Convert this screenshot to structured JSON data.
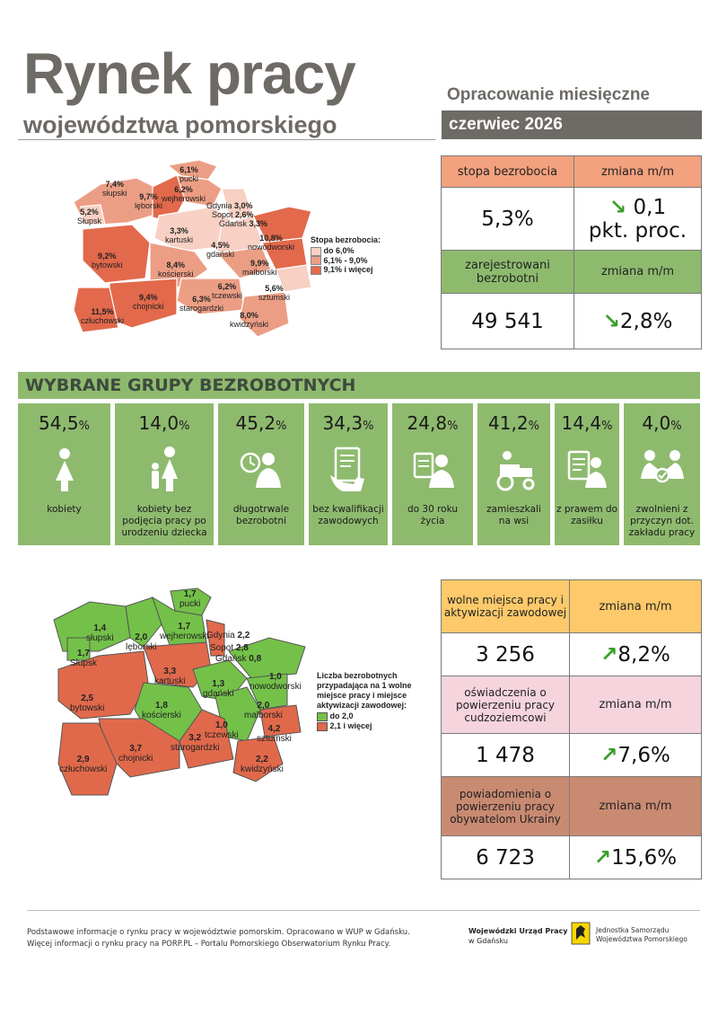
{
  "header": {
    "title": "Rynek pracy",
    "subtitle": "województwa pomorskiego",
    "report_type": "Opracowanie miesięczne",
    "period": "czerwiec 2026"
  },
  "colors": {
    "gray": "#6e6a66",
    "salmon_header": "#f3a17e",
    "green": "#8eba6e",
    "yellow": "#fdc96a",
    "pink": "#f5d4dd",
    "brown": "#c98a72",
    "map_low": "#f8d0c4",
    "map_mid": "#ec9e85",
    "map_high": "#e2694b",
    "map2_green": "#74c149",
    "map2_red": "#e1694b"
  },
  "kpi_top": {
    "unemployment_rate_label": "stopa bezrobocia",
    "change_label": "zmiana m/m",
    "unemployment_rate": "5,3%",
    "unemployment_rate_change": "0,1",
    "unemployment_rate_change_unit": "pkt. proc.",
    "registered_label": "zarejestrowani bezrobotni",
    "registered": "49 541",
    "registered_change": "2,8%"
  },
  "map1": {
    "legend_title": "Stopa bezrobocia:",
    "legend": [
      "do 6,0%",
      "6,1% - 9,0%",
      "9,1% i więcej"
    ],
    "counties": [
      {
        "name": "pucki",
        "value": "6,1%"
      },
      {
        "name": "wejherowski",
        "value": "6,2%"
      },
      {
        "name": "słupski",
        "value": "7,4%"
      },
      {
        "name": "lęborski",
        "value": "9,7%"
      },
      {
        "name": "Słupsk",
        "value": "5,2%"
      },
      {
        "name": "Gdynia",
        "value": "3,0%"
      },
      {
        "name": "Sopot",
        "value": "2,6%"
      },
      {
        "name": "Gdańsk",
        "value": "3,3%"
      },
      {
        "name": "kartuski",
        "value": "3,3%"
      },
      {
        "name": "gdański",
        "value": "4,5%"
      },
      {
        "name": "nowodworski",
        "value": "10,8%"
      },
      {
        "name": "bytowski",
        "value": "9,2%"
      },
      {
        "name": "kościerski",
        "value": "8,4%"
      },
      {
        "name": "malborski",
        "value": "9,9%"
      },
      {
        "name": "tczewski",
        "value": "6,2%"
      },
      {
        "name": "sztumski",
        "value": "5,6%"
      },
      {
        "name": "chojnicki",
        "value": "9,4%"
      },
      {
        "name": "starogardzki",
        "value": "6,3%"
      },
      {
        "name": "człuchowski",
        "value": "11,5%"
      },
      {
        "name": "kwidzyński",
        "value": "8,0%"
      }
    ]
  },
  "groups": {
    "title": "WYBRANE GRUPY BEZROBOTNYCH",
    "items": [
      {
        "value": "54,5",
        "unit": "%",
        "label": "kobiety",
        "icon": "woman-icon"
      },
      {
        "value": "14,0",
        "unit": "%",
        "label": "kobiety bez podjęcia pracy po urodzeniu dziecka",
        "icon": "mother-child-icon"
      },
      {
        "value": "45,2",
        "unit": "%",
        "label": "długotrwale bezrobotni",
        "icon": "clock-person-icon"
      },
      {
        "value": "34,3",
        "unit": "%",
        "label": "bez kwalifikacji zawodowych",
        "icon": "document-hand-icon"
      },
      {
        "value": "24,8",
        "unit": "%",
        "label": "do 30 roku życia",
        "icon": "young-person-icon"
      },
      {
        "value": "41,2",
        "unit": "%",
        "label": "zamieszkali na wsi",
        "icon": "tractor-icon"
      },
      {
        "value": "14,4",
        "unit": "%",
        "label": "z prawem do zasiłku",
        "icon": "benefit-document-icon"
      },
      {
        "value": "4,0",
        "unit": "%",
        "label": "zwolnieni z przyczyn dot. zakładu pracy",
        "icon": "handshake-icon"
      }
    ]
  },
  "map2": {
    "legend_title": "Liczba bezrobotnych przypadająca na 1 wolne miejsce pracy i miejsce aktywizacji zawodowej:",
    "legend": [
      "do 2,0",
      "2,1 i więcej"
    ],
    "counties": [
      {
        "name": "pucki",
        "value": "1,7"
      },
      {
        "name": "słupski",
        "value": "1,4"
      },
      {
        "name": "lęborski",
        "value": "2,0"
      },
      {
        "name": "wejherowski",
        "value": "1,7"
      },
      {
        "name": "Słupsk",
        "value": "1,7"
      },
      {
        "name": "Gdynia",
        "value": "2,2"
      },
      {
        "name": "Sopot",
        "value": "2,8"
      },
      {
        "name": "Gdańsk",
        "value": "0,8"
      },
      {
        "name": "kartuski",
        "value": "3,3"
      },
      {
        "name": "nowodworski",
        "value": "1,0"
      },
      {
        "name": "gdański",
        "value": "1,3"
      },
      {
        "name": "bytowski",
        "value": "2,5"
      },
      {
        "name": "malborski",
        "value": "2,0"
      },
      {
        "name": "kościerski",
        "value": "1,8"
      },
      {
        "name": "tczewski",
        "value": "1,0"
      },
      {
        "name": "sztumski",
        "value": "4,2"
      },
      {
        "name": "chojnicki",
        "value": "3,7"
      },
      {
        "name": "starogardzki",
        "value": "3,2"
      },
      {
        "name": "człuchowski",
        "value": "2,9"
      },
      {
        "name": "kwidzyński",
        "value": "2,2"
      }
    ]
  },
  "kpi_bottom": {
    "change_label": "zmiana m/m",
    "vacancies_label": "wolne miejsca pracy i aktywizacji zawodowej",
    "vacancies": "3 256",
    "vacancies_change": "8,2%",
    "declarations_label": "oświadczenia o powierzeniu pracy cudzoziemcowi",
    "declarations": "1 478",
    "declarations_change": "7,6%",
    "notifications_label": "powiadomienia o powierzeniu pracy obywatelom Ukrainy",
    "notifications": "6 723",
    "notifications_change": "15,6%"
  },
  "footer": {
    "line1": "Podstawowe informacje o rynku pracy w województwie pomorskim. Opracowano w WUP w Gdańsku.",
    "line2": "Więcej informacji o rynku pracy na PORP.PL – Portalu Pomorskiego Obserwatorium Rynku Pracy.",
    "org1": "Wojewódzki Urząd Pracy",
    "org1_sub": "w Gdańsku",
    "org2_line1": "Jednostka Samorządu",
    "org2_line2": "Województwa Pomorskiego"
  }
}
